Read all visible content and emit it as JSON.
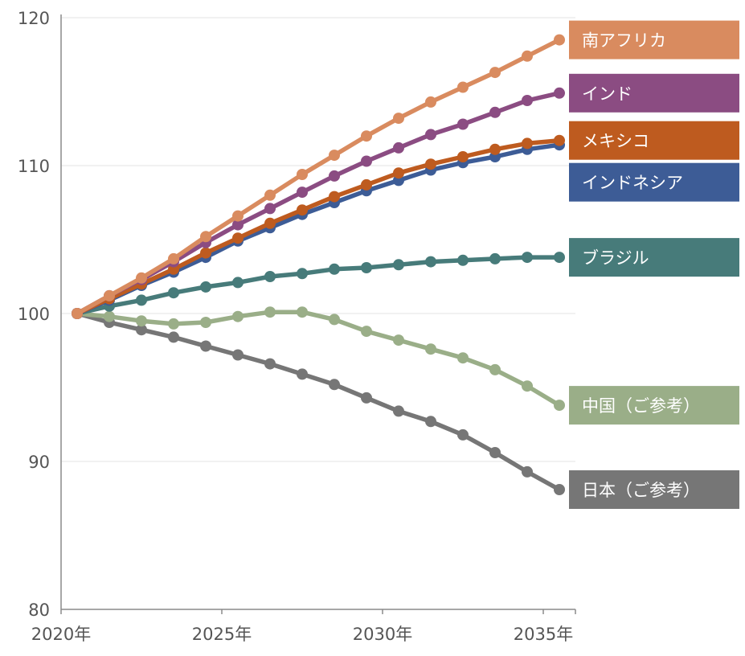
{
  "chart_data": {
    "type": "line",
    "title": "",
    "xlabel": "",
    "ylabel": "",
    "ylim": [
      80,
      120
    ],
    "yticks": [
      "80",
      "90",
      "100",
      "110",
      "120"
    ],
    "xlim": [
      2020,
      2036
    ],
    "xticks": [
      {
        "year": 2020,
        "label": "2020年"
      },
      {
        "year": 2025,
        "label": "2025年"
      },
      {
        "year": 2030,
        "label": "2030年"
      },
      {
        "year": 2035,
        "label": "2035年"
      }
    ],
    "grid": "horizontal",
    "legend": "right, labels at series ends",
    "x": [
      2020.5,
      2021.5,
      2022.5,
      2023.5,
      2024.5,
      2025.5,
      2026.5,
      2027.5,
      2028.5,
      2029.5,
      2030.5,
      2031.5,
      2032.5,
      2033.5,
      2034.5,
      2035.5
    ],
    "series": [
      {
        "name": "南アフリカ",
        "color": "#D98B5F",
        "values": [
          100.0,
          101.2,
          102.4,
          103.7,
          105.2,
          106.6,
          108.0,
          109.4,
          110.7,
          112.0,
          113.2,
          114.3,
          115.3,
          116.3,
          117.4,
          118.5
        ]
      },
      {
        "name": "インド",
        "color": "#8B4C82",
        "values": [
          100.0,
          101.2,
          102.3,
          103.5,
          104.8,
          106.0,
          107.1,
          108.2,
          109.3,
          110.3,
          111.2,
          112.1,
          112.8,
          113.6,
          114.4,
          114.9
        ]
      },
      {
        "name": "メキシコ",
        "color": "#BE5B1F",
        "values": [
          100.0,
          101.0,
          102.0,
          103.0,
          104.1,
          105.1,
          106.1,
          107.0,
          107.9,
          108.7,
          109.5,
          110.1,
          110.6,
          111.1,
          111.5,
          111.7
        ]
      },
      {
        "name": "インドネシア",
        "color": "#3D5C96",
        "values": [
          100.0,
          100.9,
          101.9,
          102.8,
          103.8,
          104.9,
          105.8,
          106.7,
          107.5,
          108.3,
          109.0,
          109.7,
          110.2,
          110.6,
          111.1,
          111.4
        ]
      },
      {
        "name": "ブラジル",
        "color": "#477B7A",
        "values": [
          100.0,
          100.5,
          100.9,
          101.4,
          101.8,
          102.1,
          102.5,
          102.7,
          103.0,
          103.1,
          103.3,
          103.5,
          103.6,
          103.7,
          103.8,
          103.8
        ]
      },
      {
        "name": "中国（ご参考）",
        "color": "#9AAE88",
        "values": [
          100.0,
          99.8,
          99.5,
          99.3,
          99.4,
          99.8,
          100.1,
          100.1,
          99.6,
          98.8,
          98.2,
          97.6,
          97.0,
          96.2,
          95.1,
          93.8
        ]
      },
      {
        "name": "日本（ご参考）",
        "color": "#767676",
        "values": [
          100.0,
          99.4,
          98.9,
          98.4,
          97.8,
          97.2,
          96.6,
          95.9,
          95.2,
          94.3,
          93.4,
          92.7,
          91.8,
          90.6,
          89.3,
          88.1
        ]
      }
    ]
  }
}
